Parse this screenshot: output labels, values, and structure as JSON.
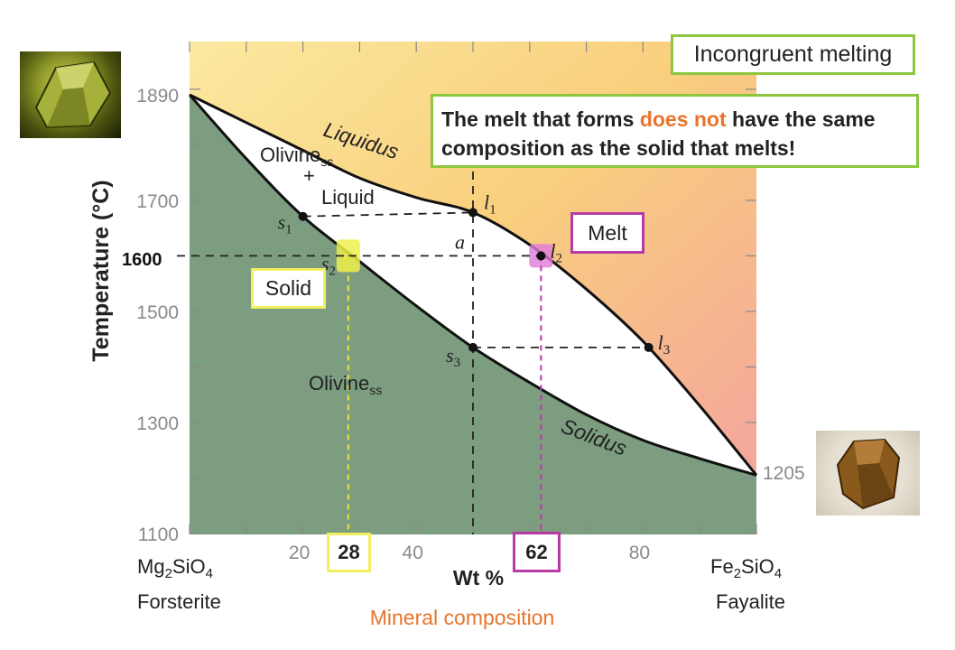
{
  "title": "Incongruent melting",
  "note": {
    "part1": "The melt that forms ",
    "highlight": "does not",
    "part2": " have the same composition as the solid that melts!"
  },
  "labels": {
    "melt": "Melt",
    "solid": "Solid",
    "val_28": "28",
    "val_62": "62",
    "t_1600": "1600"
  },
  "chart_data": {
    "type": "phase-diagram",
    "ylabel": "Temperature (°C)",
    "xlabel": "Wt %",
    "subtitle": "Mineral composition",
    "x_range": [
      0,
      100
    ],
    "y_range": [
      1100,
      1950
    ],
    "x_ticks": [
      20,
      40,
      80
    ],
    "y_ticks": [
      1100,
      1300,
      1500,
      1700,
      1890
    ],
    "endpoint_left": {
      "formula": "Mg",
      "sub1": "2",
      "mid": "SiO",
      "sub2": "4",
      "name": "Forsterite",
      "melting_point": 1890
    },
    "endpoint_right": {
      "formula": "Fe",
      "sub1": "2",
      "mid": "SiO",
      "sub2": "4",
      "name": "Fayalite",
      "melting_point": 1205
    },
    "liquidus": {
      "label": "Liquidus",
      "points": [
        [
          0,
          1890
        ],
        [
          10,
          1840
        ],
        [
          20,
          1790
        ],
        [
          30,
          1740
        ],
        [
          40,
          1705
        ],
        [
          50,
          1678
        ],
        [
          60,
          1620
        ],
        [
          70,
          1540
        ],
        [
          80,
          1446
        ],
        [
          90,
          1330
        ],
        [
          100,
          1205
        ]
      ]
    },
    "solidus": {
      "label": "Solidus",
      "points": [
        [
          0,
          1890
        ],
        [
          10,
          1775
        ],
        [
          20,
          1671
        ],
        [
          30,
          1590
        ],
        [
          40,
          1510
        ],
        [
          50,
          1435
        ],
        [
          60,
          1372
        ],
        [
          70,
          1314
        ],
        [
          80,
          1268
        ],
        [
          90,
          1235
        ],
        [
          100,
          1205
        ]
      ]
    },
    "regions": [
      {
        "name": "Olivine",
        "sub": "ss",
        "extra": "+",
        "extra2": "Liquid"
      },
      {
        "name": "Olivine",
        "sub": "ss"
      }
    ],
    "points": [
      {
        "name": "s",
        "sub": "1",
        "x": 20,
        "y": 1671
      },
      {
        "name": "l",
        "sub": "1",
        "x": 50,
        "y": 1678
      },
      {
        "name": "s",
        "sub": "2",
        "x": 28,
        "y": 1600
      },
      {
        "name": "l",
        "sub": "2",
        "x": 62,
        "y": 1600
      },
      {
        "name": "s",
        "sub": "3",
        "x": 50,
        "y": 1435
      },
      {
        "name": "l",
        "sub": "3",
        "x": 81,
        "y": 1435
      }
    ],
    "point_a": {
      "label": "a",
      "x": 50,
      "y": 1600
    },
    "highlight_temperature": 1600,
    "highlight_compositions": [
      28,
      62
    ]
  }
}
